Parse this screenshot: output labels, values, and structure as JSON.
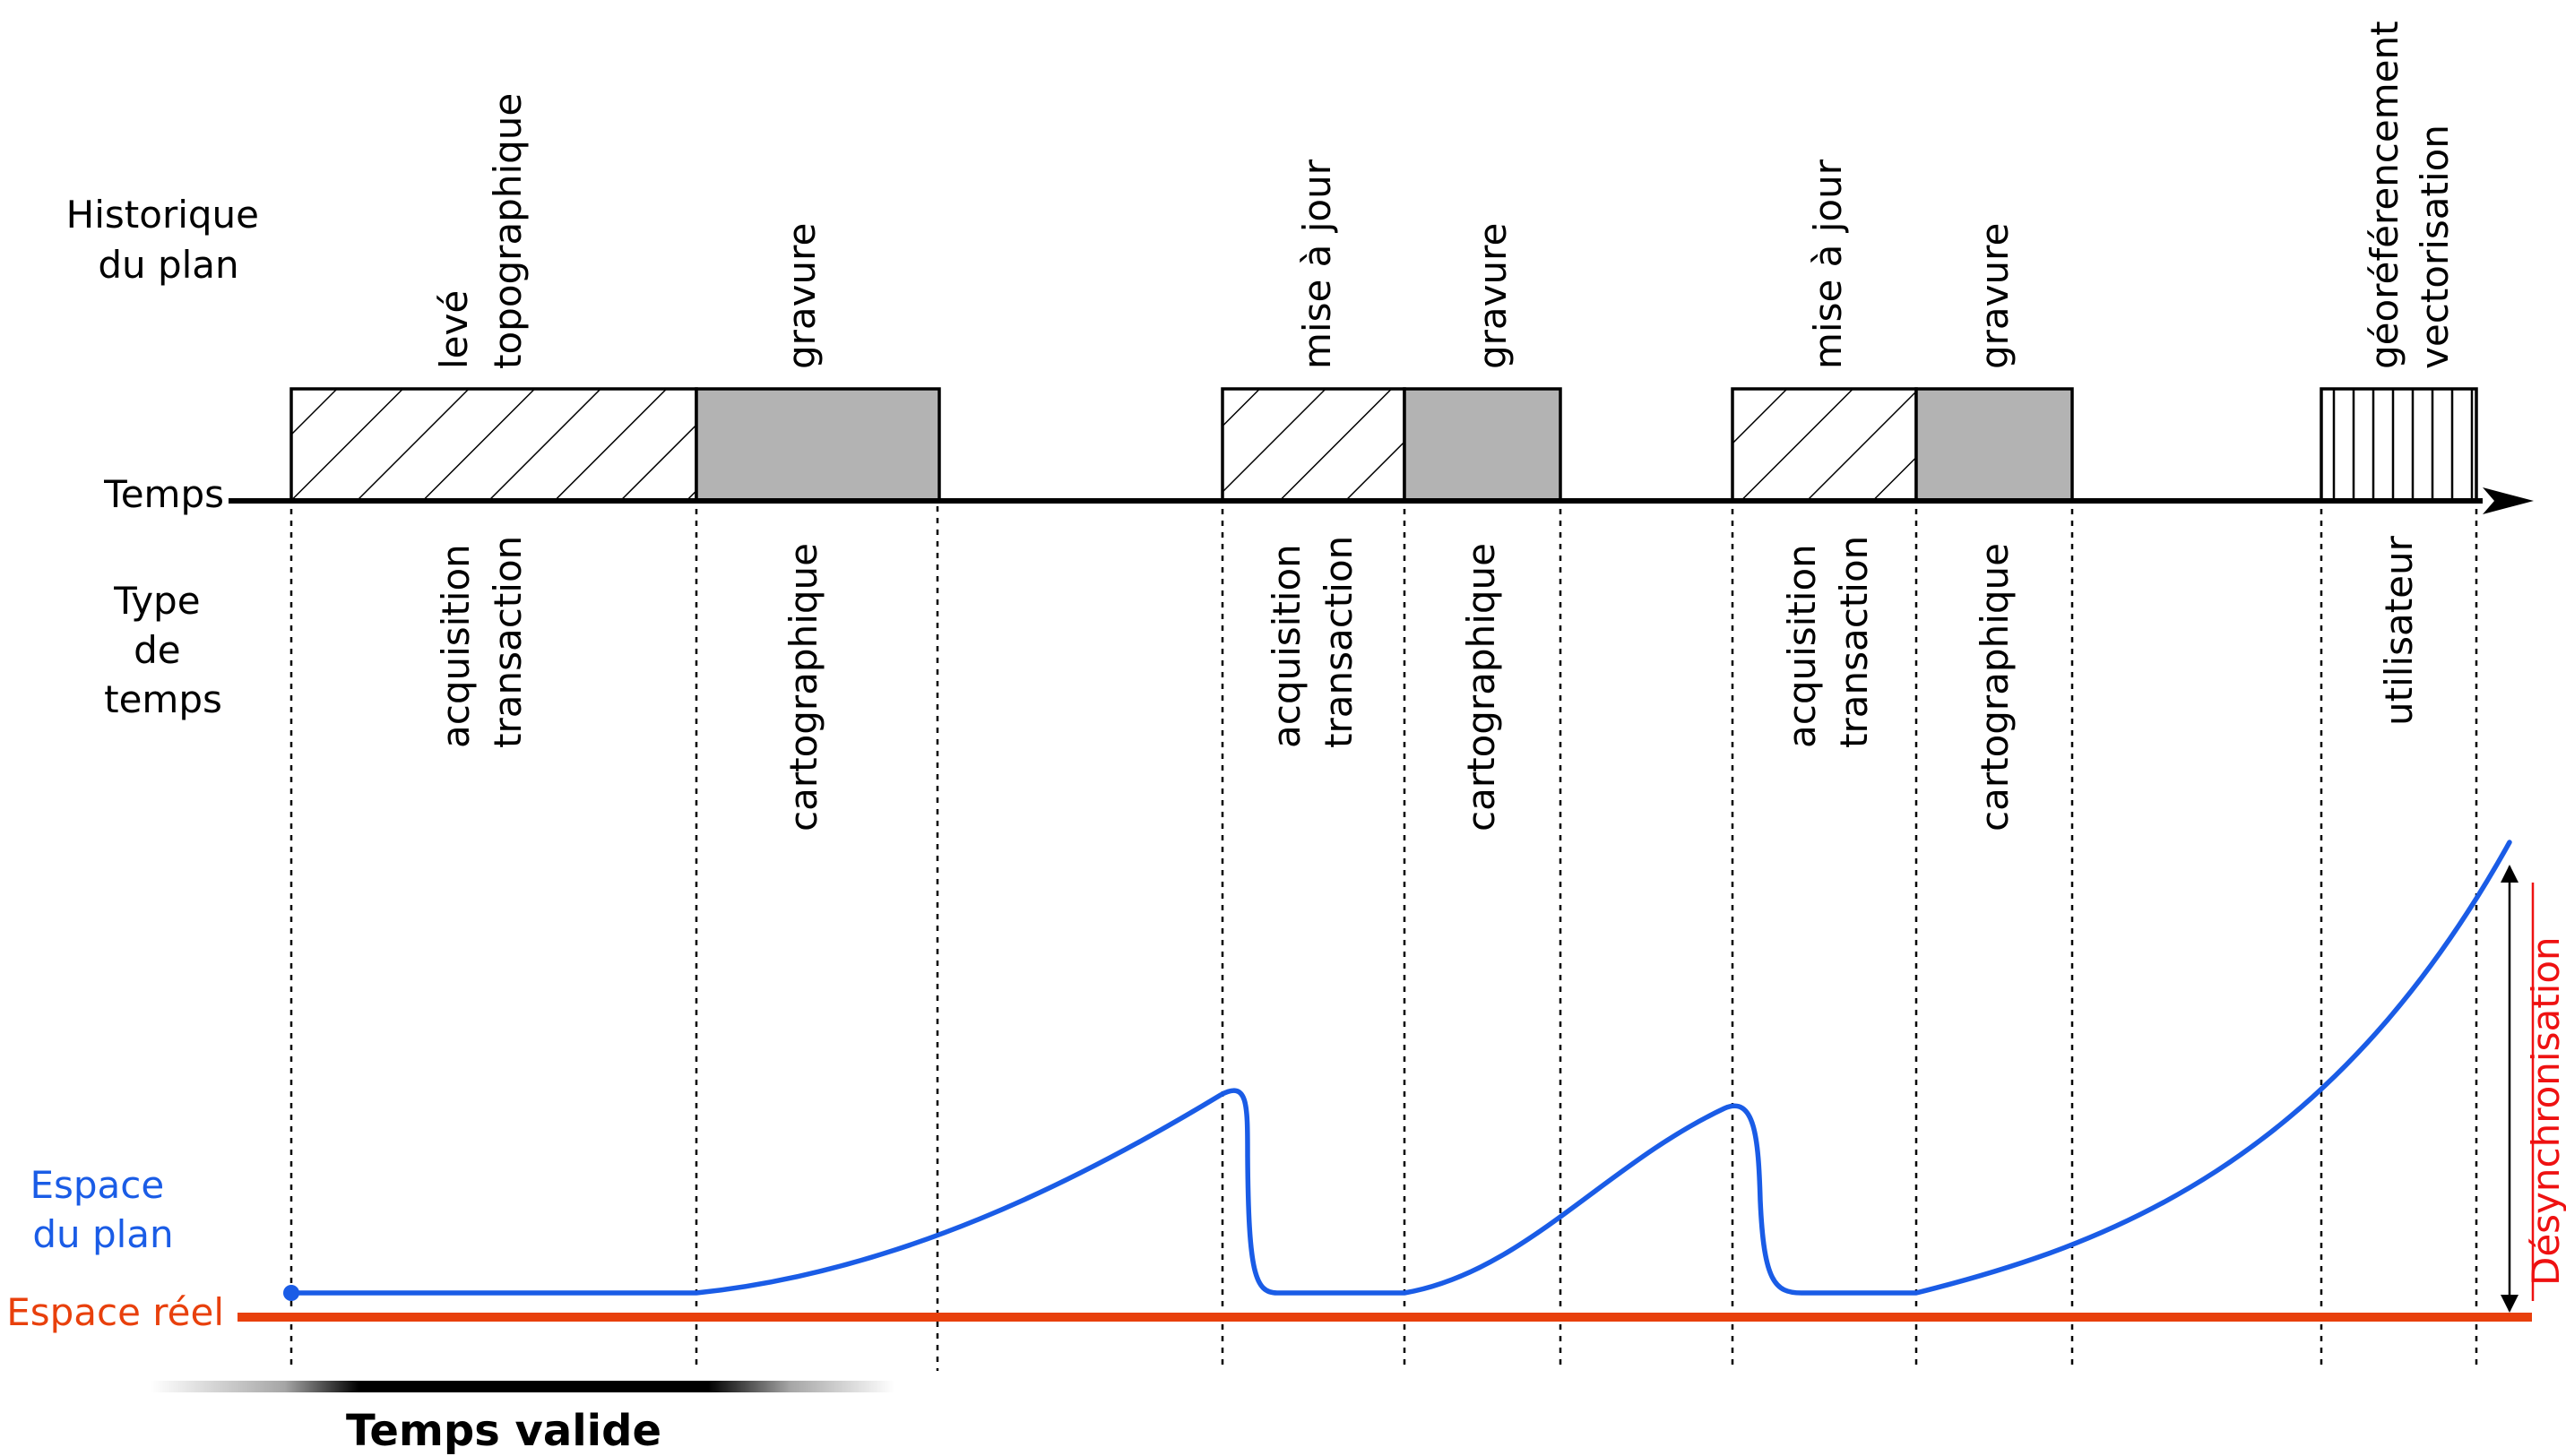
{
  "left_labels": {
    "historique": [
      "Historique",
      "du plan"
    ],
    "temps": "Temps",
    "type_de_temps": [
      "Type",
      "de",
      "temps"
    ],
    "espace_plan": [
      "Espace",
      "du plan"
    ],
    "espace_reel": "Espace réel"
  },
  "phases": [
    {
      "top": [
        "levé",
        "topographique"
      ],
      "bottom": [
        "acquisition",
        "transaction"
      ],
      "fill": "hatch-diagonal"
    },
    {
      "top": [
        "gravure"
      ],
      "bottom": [
        "cartographique"
      ],
      "fill": "grey"
    },
    {
      "top": [
        "mise à jour"
      ],
      "bottom": [
        "acquisition",
        "transaction"
      ],
      "fill": "hatch-diagonal"
    },
    {
      "top": [
        "gravure"
      ],
      "bottom": [
        "cartographique"
      ],
      "fill": "grey"
    },
    {
      "top": [
        "mise à jour"
      ],
      "bottom": [
        "acquisition",
        "transaction"
      ],
      "fill": "hatch-diagonal"
    },
    {
      "top": [
        "gravure"
      ],
      "bottom": [
        "cartographique"
      ],
      "fill": "grey"
    },
    {
      "top": [
        "géoréférencement",
        "vectorisation"
      ],
      "bottom": [
        "utilisateur"
      ],
      "fill": "hatch-vertical"
    }
  ],
  "desynchronisation": "Désynchronisation",
  "temps_valide": "Temps valide",
  "colors": {
    "plan": "#1a5ce6",
    "reel": "#e8400c",
    "desync": "#ee1111",
    "grey_box": "#b3b3b3"
  }
}
